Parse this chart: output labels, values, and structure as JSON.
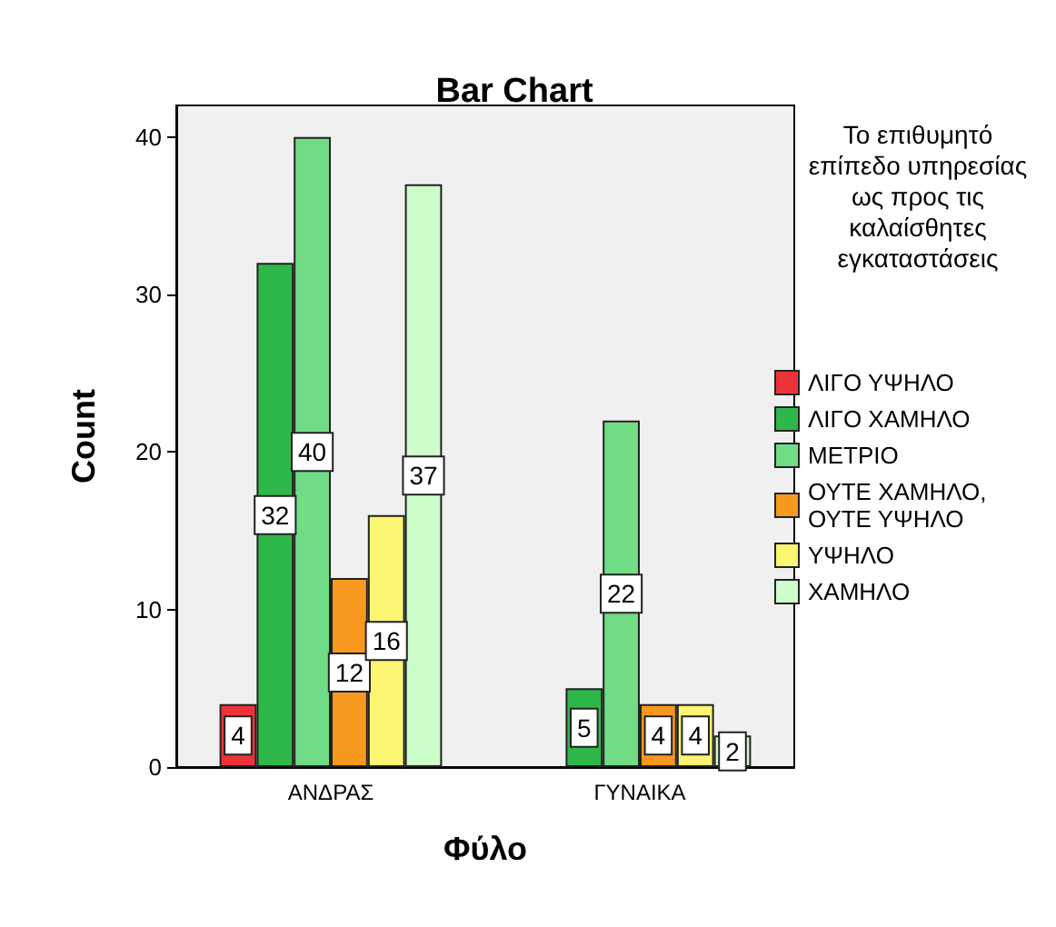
{
  "chart_data": {
    "type": "bar",
    "title": "Bar Chart",
    "xlabel": "Φύλο",
    "ylabel": "Count",
    "legend_title": "Το επιθυμητό επίπεδο υπηρεσίας ως προς τις καλαίσθητες εγκαταστάσεις",
    "categories": [
      "ΑΝΔΡΑΣ",
      "ΓΥΝΑΙΚΑ"
    ],
    "series": [
      {
        "name": "ΛΙΓΟ ΥΨΗΛΟ",
        "color": "#ee3239",
        "values": [
          4,
          null
        ]
      },
      {
        "name": "ΛΙΓΟ ΧΑΜΗΛΟ",
        "color": "#2fb84a",
        "values": [
          32,
          5
        ]
      },
      {
        "name": "ΜΕΤΡΙΟ",
        "color": "#70dc86",
        "values": [
          40,
          22
        ]
      },
      {
        "name": "ΟΥΤΕ ΧΑΜΗΛΟ, ΟΥΤΕ ΥΨΗΛΟ",
        "color": "#f7991f",
        "values": [
          12,
          4
        ]
      },
      {
        "name": "ΥΨΗΛΟ",
        "color": "#faf572",
        "values": [
          16,
          4
        ]
      },
      {
        "name": "ΧΑΜΗΛΟ",
        "color": "#ccfdca",
        "values": [
          37,
          2
        ]
      }
    ],
    "ylim": [
      0,
      42
    ],
    "yticks": [
      0,
      10,
      20,
      30,
      40
    ],
    "grid": false,
    "legend": "right",
    "data_labels": true
  }
}
